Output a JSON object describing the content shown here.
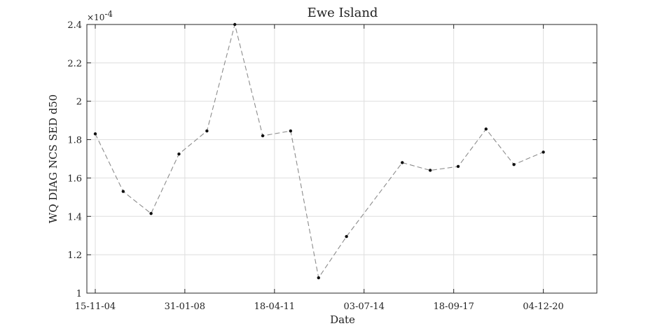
{
  "chart_data": {
    "type": "line",
    "title": "Ewe Island",
    "xlabel": "Date",
    "ylabel": "WQ DIAG NCS SED d50",
    "y_exponent_label": "×10",
    "y_exponent_power": "-4",
    "y_scale_factor": 0.0001,
    "xlim": [
      "2004-07-28",
      "2022-11-04"
    ],
    "ylim": [
      0.0001,
      0.00024
    ],
    "grid": true,
    "x_ticks": [
      {
        "date": "2004-11-15",
        "label": "15-11-04"
      },
      {
        "date": "2008-01-31",
        "label": "31-01-08"
      },
      {
        "date": "2011-04-18",
        "label": "18-04-11"
      },
      {
        "date": "2014-07-03",
        "label": "03-07-14"
      },
      {
        "date": "2017-09-18",
        "label": "18-09-17"
      },
      {
        "date": "2020-12-04",
        "label": "04-12-20"
      }
    ],
    "y_ticks": [
      {
        "value": 0.0001,
        "label": "1"
      },
      {
        "value": 0.00012,
        "label": "1.2"
      },
      {
        "value": 0.00014,
        "label": "1.4"
      },
      {
        "value": 0.00016,
        "label": "1.6"
      },
      {
        "value": 0.00018,
        "label": "1.8"
      },
      {
        "value": 0.0002,
        "label": "2"
      },
      {
        "value": 0.00022,
        "label": "2.2"
      },
      {
        "value": 0.00024,
        "label": "2.4"
      }
    ],
    "series": [
      {
        "line_color": "#8c8c8c",
        "marker_color": "#111111",
        "line_style": "dashed",
        "points": [
          {
            "x": "2004-11-15",
            "y": 0.000183
          },
          {
            "x": "2005-11-15",
            "y": 0.000153
          },
          {
            "x": "2006-11-15",
            "y": 0.0001415
          },
          {
            "x": "2007-11-15",
            "y": 0.0001725
          },
          {
            "x": "2008-11-15",
            "y": 0.0001845
          },
          {
            "x": "2009-11-15",
            "y": 0.00024
          },
          {
            "x": "2010-11-15",
            "y": 0.000182
          },
          {
            "x": "2011-11-15",
            "y": 0.0001845
          },
          {
            "x": "2012-11-15",
            "y": 0.000108
          },
          {
            "x": "2013-11-15",
            "y": 0.0001295
          },
          {
            "x": "2015-11-15",
            "y": 0.000168
          },
          {
            "x": "2016-11-15",
            "y": 0.000164
          },
          {
            "x": "2017-11-15",
            "y": 0.000166
          },
          {
            "x": "2018-11-15",
            "y": 0.0001855
          },
          {
            "x": "2019-11-15",
            "y": 0.000167
          },
          {
            "x": "2020-12-04",
            "y": 0.0001735
          }
        ]
      }
    ]
  }
}
